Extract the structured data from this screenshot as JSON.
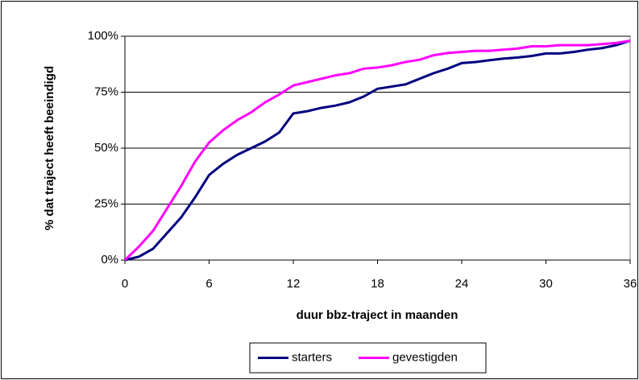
{
  "chart_data": {
    "type": "line",
    "x_label": "duur bbz-traject in maanden",
    "y_label": "% dat traject heeft beeindigd",
    "x": [
      0,
      1,
      2,
      3,
      4,
      5,
      6,
      7,
      8,
      9,
      10,
      11,
      12,
      13,
      14,
      15,
      16,
      17,
      18,
      19,
      20,
      21,
      22,
      23,
      24,
      25,
      26,
      27,
      28,
      29,
      30,
      31,
      32,
      33,
      34,
      35,
      36
    ],
    "series": [
      {
        "name": "starters",
        "color": "#000080",
        "values": [
          0,
          1.5,
          5,
          12,
          19,
          28,
          38,
          43,
          47,
          50,
          53,
          57,
          65.5,
          66.5,
          68,
          69,
          70.5,
          73,
          76.5,
          77.5,
          78.5,
          81,
          83.5,
          85.5,
          88,
          88.5,
          89.3,
          90,
          90.5,
          91.2,
          92.3,
          92.3,
          93,
          94,
          94.7,
          96,
          98
        ]
      },
      {
        "name": "gevestigden",
        "color": "#ff00ff",
        "values": [
          0,
          6,
          13,
          23,
          33,
          44,
          52.5,
          58,
          62.5,
          66,
          70.5,
          74,
          78,
          79.5,
          81,
          82.5,
          83.5,
          85.5,
          86,
          87,
          88.5,
          89.5,
          91.5,
          92.5,
          93,
          93.5,
          93.5,
          94,
          94.5,
          95.5,
          95.5,
          96,
          96,
          96,
          96.5,
          97,
          98
        ]
      }
    ],
    "xlim": [
      0,
      36
    ],
    "xticks": [
      0,
      6,
      12,
      18,
      24,
      30,
      36
    ],
    "ylim": [
      0,
      100
    ],
    "yticks": [
      {
        "value": 0,
        "label": "0%"
      },
      {
        "value": 25,
        "label": "25%"
      },
      {
        "value": 50,
        "label": "50%"
      },
      {
        "value": 75,
        "label": "75%"
      },
      {
        "value": 100,
        "label": "100%"
      }
    ],
    "grid": true,
    "legend": "bottom"
  }
}
